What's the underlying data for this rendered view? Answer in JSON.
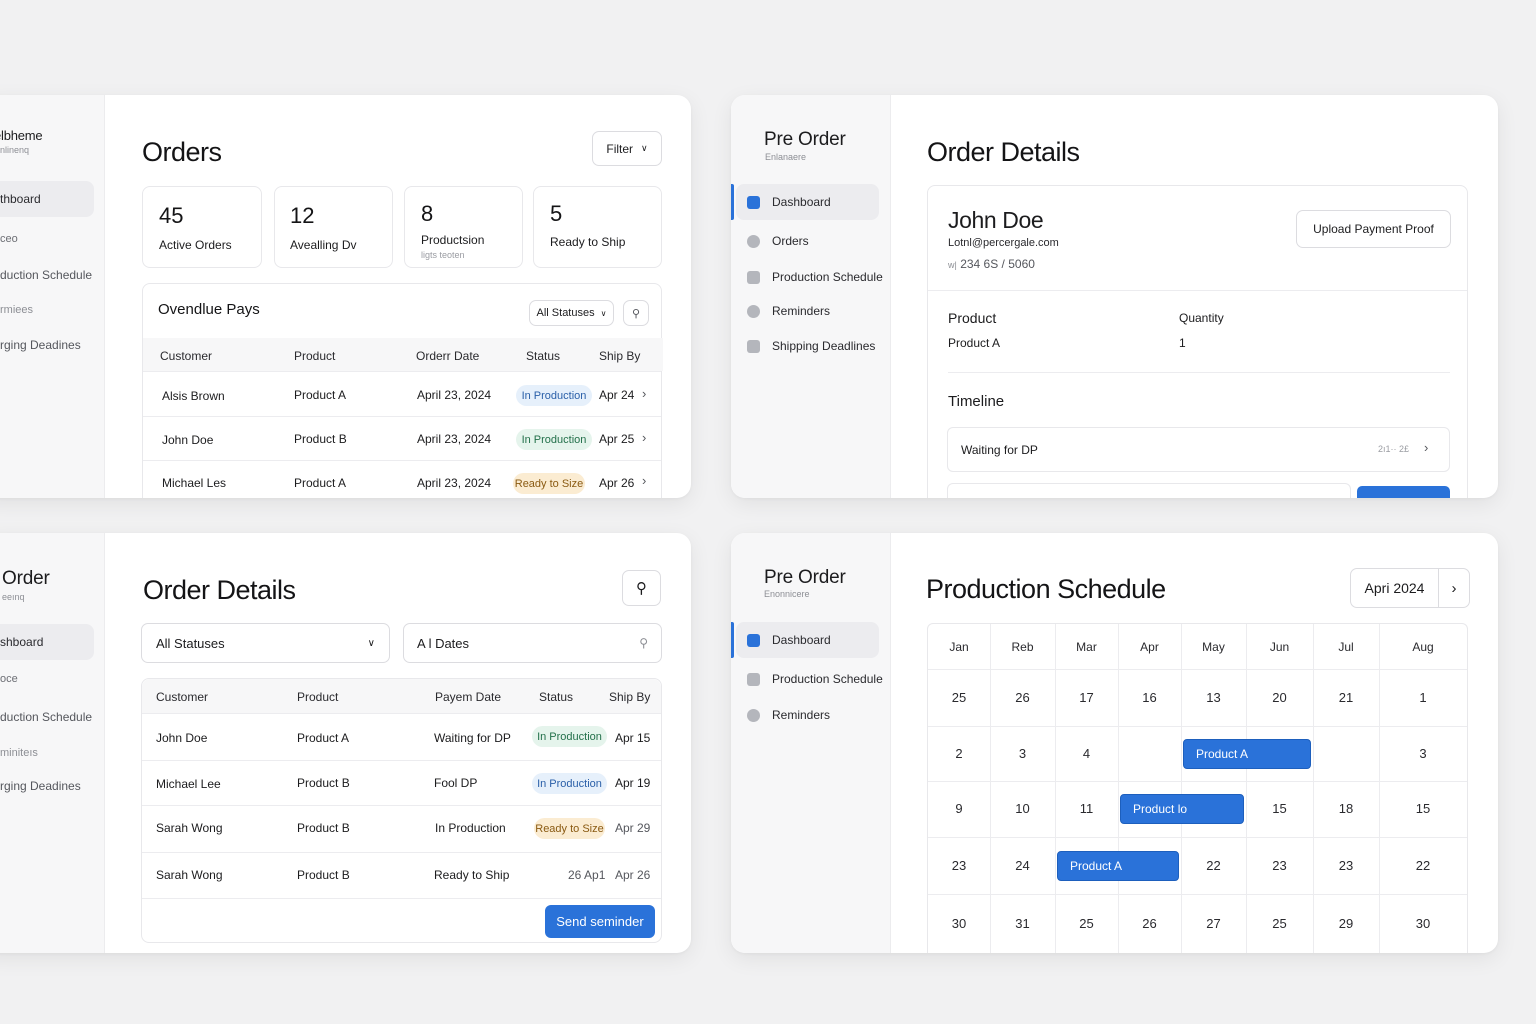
{
  "colors": {
    "accent": "#2a72d9",
    "production_badge": "#e6f0fb",
    "production_badge_green": "#e5f4ec",
    "ready_badge": "#fbecd2"
  },
  "panel1": {
    "sidebar": {
      "brand": "elbheme",
      "brand_sub": "Enlinenq",
      "items": [
        {
          "label": "thboard",
          "active": true
        },
        {
          "label": "ceo"
        },
        {
          "label": "duction Schedule"
        },
        {
          "label": "rmiees"
        },
        {
          "label": "rging Deadines"
        }
      ]
    },
    "title": "Orders",
    "filter_label": "Filter",
    "stats": [
      {
        "value": "45",
        "label": "Active Orders"
      },
      {
        "value": "12",
        "label": "Avealling Dv"
      },
      {
        "value": "8",
        "label": "Productsion",
        "sub": "ligts teoten"
      },
      {
        "value": "5",
        "label": "Ready to Ship"
      }
    ],
    "table": {
      "title": "Ovendlue Pays",
      "status_filter": "All Statuses",
      "columns": [
        "Customer",
        "Product",
        "Orderr Date",
        "Status",
        "Ship By"
      ],
      "rows": [
        {
          "customer": "Alsis Brown",
          "product": "Product A",
          "date": "April 23, 2024",
          "status": "In Production",
          "ship": "Apr 24"
        },
        {
          "customer": "John Doe",
          "product": "Product B",
          "date": "April 23, 2024",
          "status": "In Production",
          "ship": "Apr 25"
        },
        {
          "customer": "Michael Les",
          "product": "Product A",
          "date": "April 23, 2024",
          "status": "Ready to Size",
          "ship": "Apr 26"
        }
      ]
    }
  },
  "panel2": {
    "sidebar": {
      "brand": "Pre Order",
      "brand_sub": "Enlanaere",
      "items": [
        {
          "label": "Dashboard",
          "active": true
        },
        {
          "label": "Orders"
        },
        {
          "label": "Production Schedule"
        },
        {
          "label": "Reminders"
        },
        {
          "label": "Shipping Deadlines"
        }
      ]
    },
    "title": "Order Details",
    "customer": {
      "name": "John Doe",
      "email": "Lotnl@percergale.com",
      "phone": "234 6S /  5060",
      "phone_prefix": "w|"
    },
    "upload_label": "Upload Payment Proof",
    "product_header": "Product",
    "quantity_header": "Quantity",
    "product_value": "Product A",
    "quantity_value": "1",
    "timeline_title": "Timeline",
    "timeline_items": [
      {
        "label": "Waiting for DP",
        "date": "2ı1·· 2£"
      }
    ]
  },
  "panel3": {
    "sidebar": {
      "brand": "Order",
      "brand_sub": "eeınq",
      "items": [
        {
          "label": "shboard",
          "active": true
        },
        {
          "label": "oce"
        },
        {
          "label": "duction Schedule"
        },
        {
          "label": "miniteıs"
        },
        {
          "label": "rging Deadines"
        }
      ]
    },
    "title": "Order Details",
    "status_select": "All  Statuses",
    "dates_input": "A l Dates",
    "columns": [
      "Customer",
      "Product",
      "Payem Date",
      "Status",
      "Ship By"
    ],
    "rows": [
      {
        "customer": "John Doe",
        "product": "Product A",
        "payment": "Waiting for DP",
        "status": "In Production",
        "status_kind": "green",
        "ship": "Apr 15"
      },
      {
        "customer": "Michael Lee",
        "product": "Product B",
        "payment": "Fool DP",
        "status": "In Production",
        "status_kind": "blue",
        "ship": "Apr 19"
      },
      {
        "customer": "Sarah Wong",
        "product": "Product B",
        "payment": "In Production",
        "status": "Ready to Size",
        "status_kind": "orange",
        "ship": "Apr 29"
      },
      {
        "customer": "Sarah Wong",
        "product": "Product B",
        "payment": "Ready to Ship",
        "status": "26 Ap1",
        "status_kind": "plain",
        "ship": "Apr 26"
      }
    ],
    "reminder_label": "Send seminder"
  },
  "panel4": {
    "sidebar": {
      "brand": "Pre Order",
      "brand_sub": "Enonnicere",
      "items": [
        {
          "label": "Dashboard",
          "active": true
        },
        {
          "label": "Production Schedule"
        },
        {
          "label": "Reminders"
        }
      ]
    },
    "title": "Production Schedule",
    "month_label": "Apri 2024",
    "months": [
      "Jan",
      "Reb",
      "Mar",
      "Apr",
      "May",
      "Jun",
      "Jul",
      "Aug"
    ],
    "grid": [
      [
        "25",
        "26",
        "17",
        "16",
        "13",
        "20",
        "21",
        "1"
      ],
      [
        "2",
        "3",
        "4",
        "",
        "",
        "",
        "",
        "3"
      ],
      [
        "9",
        "10",
        "11",
        "",
        "",
        "15",
        "18",
        "15"
      ],
      [
        "23",
        "24",
        "",
        "",
        "22",
        "23",
        "23",
        "22"
      ],
      [
        "30",
        "31",
        "25",
        "26",
        "27",
        "25",
        "29",
        "30"
      ]
    ],
    "bars": [
      {
        "label": "Product A",
        "row": 1,
        "start_col": 4,
        "span": 2
      },
      {
        "label": "Product lo",
        "row": 2,
        "start_col": 3,
        "span": 2
      },
      {
        "label": "Product A",
        "row": 3,
        "start_col": 2,
        "span": 2
      }
    ]
  }
}
